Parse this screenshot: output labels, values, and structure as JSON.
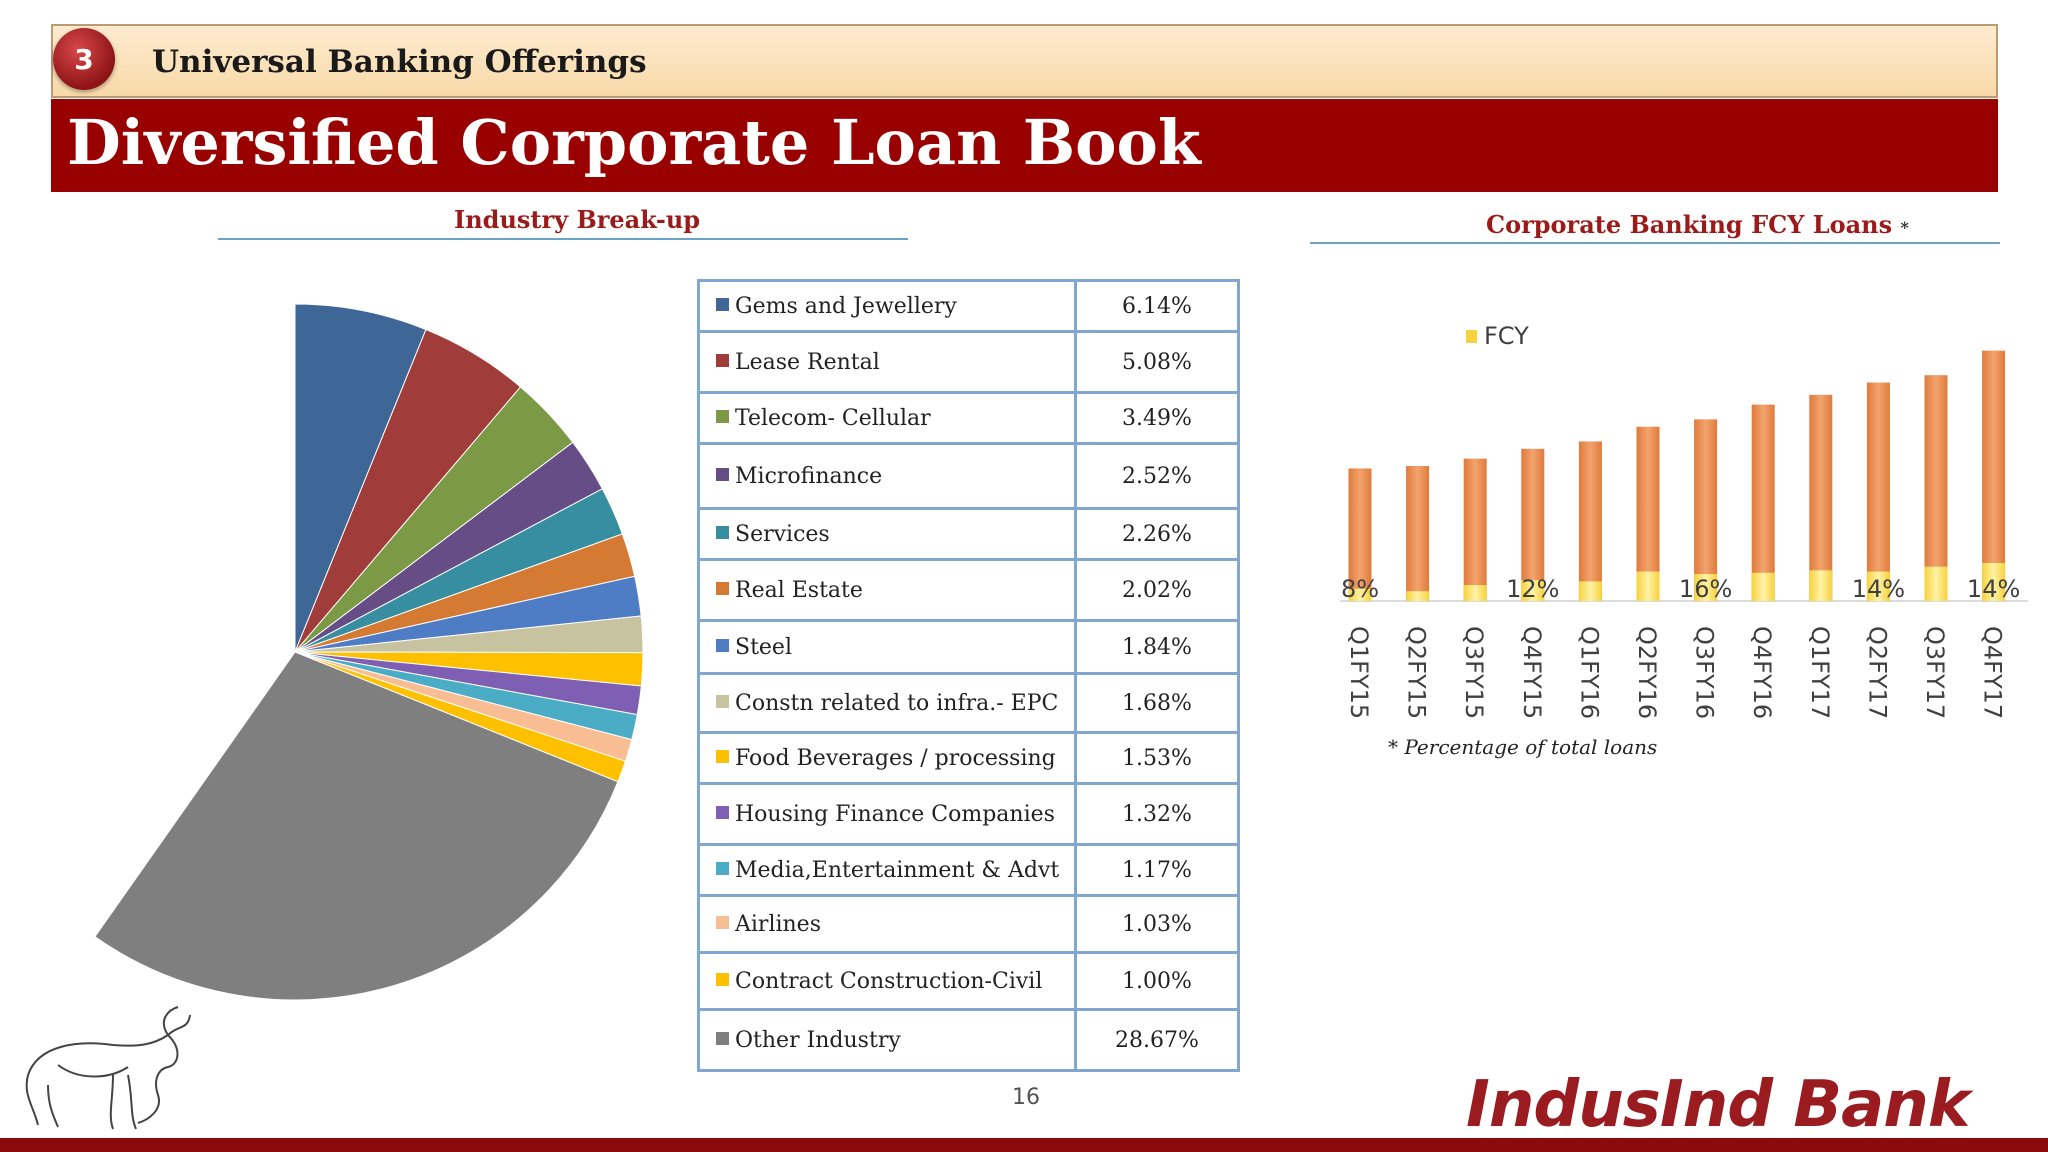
{
  "header": {
    "section_number": "3",
    "section_title": "Universal Banking Offerings",
    "title": "Diversified Corporate Loan Book"
  },
  "left_panel": {
    "heading": "Industry Break-up"
  },
  "right_panel": {
    "heading": "Corporate Banking FCY Loans",
    "heading_marker": "*",
    "footnote": "* Percentage of total loans"
  },
  "footer": {
    "page_number": "16",
    "brand": "IndusInd Bank"
  },
  "colors": {
    "header_red": "#990000",
    "fcy_bar": "#ffe066",
    "total_bar": "#e8874d"
  },
  "chart_data": [
    {
      "type": "pie",
      "title": "Industry Break-up",
      "slices": [
        {
          "label": "Gems and Jewellery",
          "value": 6.14,
          "display": "6.14%",
          "color": "#3e6797"
        },
        {
          "label": "Lease Rental",
          "value": 5.08,
          "display": "5.08%",
          "color": "#a03c3a"
        },
        {
          "label": "Telecom- Cellular",
          "value": 3.49,
          "display": "3.49%",
          "color": "#7c9a45"
        },
        {
          "label": "Microfinance",
          "value": 2.52,
          "display": "2.52%",
          "color": "#664d86"
        },
        {
          "label": "Services",
          "value": 2.26,
          "display": "2.26%",
          "color": "#378ea1"
        },
        {
          "label": "Real Estate",
          "value": 2.02,
          "display": "2.02%",
          "color": "#d47a33"
        },
        {
          "label": "Steel",
          "value": 1.84,
          "display": "1.84%",
          "color": "#4e7dc5"
        },
        {
          "label": "Constn related to infra.- EPC",
          "value": 1.68,
          "display": "1.68%",
          "color": "#c7c3a1"
        },
        {
          "label": "Food Beverages / processing",
          "value": 1.53,
          "display": "1.53%",
          "color": "#ffc000"
        },
        {
          "label": "Housing Finance Companies",
          "value": 1.32,
          "display": "1.32%",
          "color": "#7e5fb3"
        },
        {
          "label": "Media,Entertainment & Advt",
          "value": 1.17,
          "display": "1.17%",
          "color": "#4bacc6"
        },
        {
          "label": "Airlines",
          "value": 1.03,
          "display": "1.03%",
          "color": "#f9bd94"
        },
        {
          "label": "Contract Construction-Civil",
          "value": 1.0,
          "display": "1.00%",
          "color": "#ffc000"
        },
        {
          "label": "Other Industry",
          "value": 28.67,
          "display": "28.67%",
          "color": "#7f7f7f"
        }
      ]
    },
    {
      "type": "bar",
      "title": "Corporate Banking FCY Loans",
      "categories": [
        "Q1FY15",
        "Q2FY15",
        "Q3FY15",
        "Q4FY15",
        "Q1FY16",
        "Q2FY16",
        "Q3FY16",
        "Q4FY16",
        "Q1FY17",
        "Q2FY17",
        "Q3FY17",
        "Q4FY17"
      ],
      "series": [
        {
          "name": "FCY",
          "values": [
            5,
            4,
            6.5,
            8.5,
            8,
            12,
            11,
            11.5,
            12.5,
            12,
            14,
            15.5
          ]
        },
        {
          "values": [
            54,
            55,
            58,
            62,
            65,
            71,
            74,
            80,
            84,
            89,
            92,
            102
          ]
        }
      ],
      "data_labels": [
        {
          "index": 0,
          "text": "8%"
        },
        {
          "index": 3,
          "text": "12%"
        },
        {
          "index": 6,
          "text": "16%"
        },
        {
          "index": 9,
          "text": "14%"
        },
        {
          "index": 11,
          "text": "14%"
        }
      ],
      "legend": {
        "position": "top-left",
        "entries": [
          "FCY"
        ]
      },
      "ylim": [
        0,
        110
      ],
      "grid": false
    }
  ]
}
